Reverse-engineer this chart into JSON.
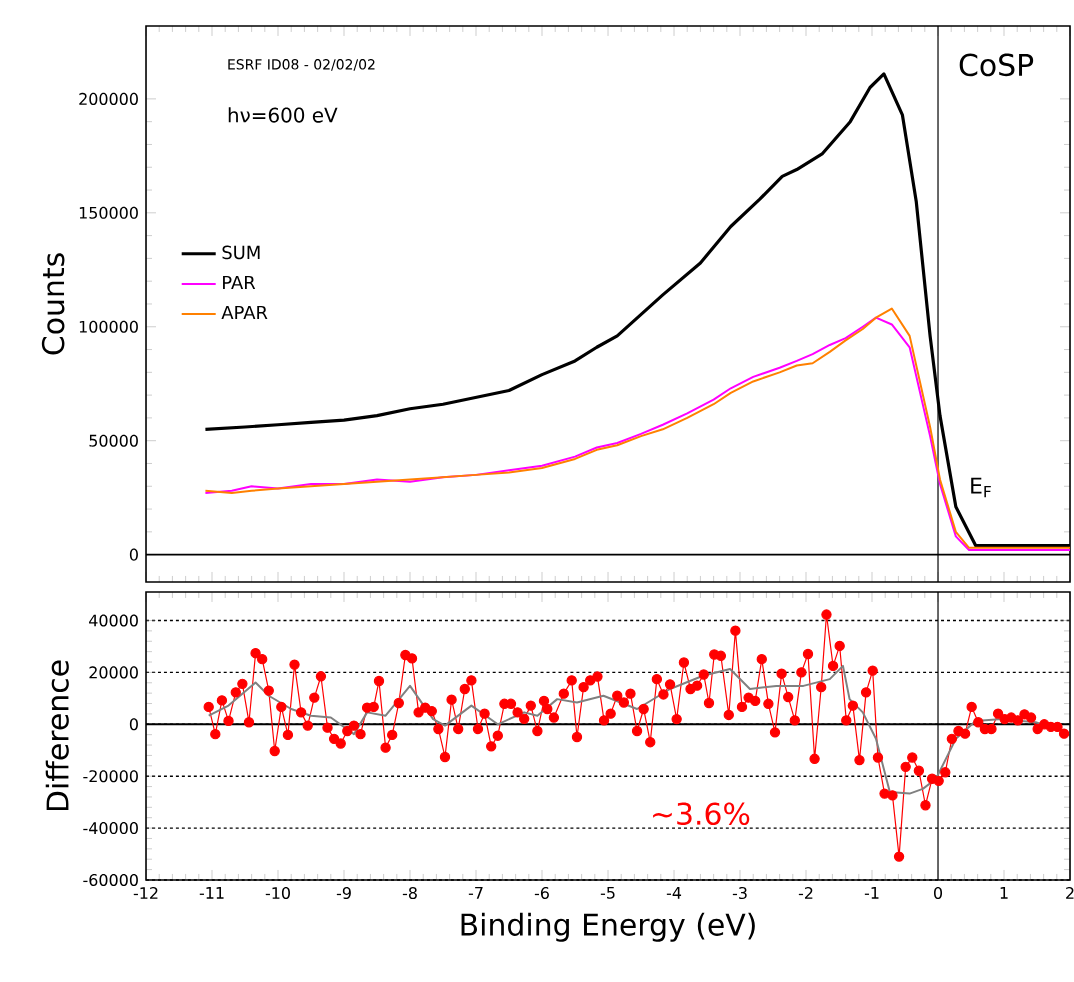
{
  "chart_data": [
    {
      "type": "line",
      "title": "CoSP",
      "ylabel": "Counts",
      "annotations": [
        "ESRF ID08 - 02/02/02",
        "hν=600 eV"
      ],
      "xlim": [
        -12,
        2
      ],
      "xticks": [
        -12,
        -11,
        -10,
        -9,
        -8,
        -7,
        -6,
        -5,
        -4,
        -3,
        -2,
        -1,
        0,
        1,
        2
      ],
      "ylim": [
        -12000,
        232000
      ],
      "yticks": [
        0,
        50000,
        100000,
        150000,
        200000
      ],
      "tick_labels": "y",
      "legend": "left",
      "marker": "none",
      "ref_lines": [
        {
          "axis": "y",
          "value": 0,
          "color": "#000000"
        },
        {
          "axis": "x",
          "value": 0,
          "color": "#000000",
          "label": "E$_{F}$"
        }
      ],
      "series": [
        {
          "name": "SUM",
          "color": "#000000",
          "x": [
            -11.1,
            -10.5,
            -10,
            -9.5,
            -9,
            -8.5,
            -8,
            -7.5,
            -7,
            -6.5,
            -6,
            -5.5,
            -5.17,
            -4.86,
            -4.17,
            -3.6,
            -3.14,
            -2.7,
            -2.36,
            -2.14,
            -1.75,
            -1.33,
            -1.03,
            -0.82,
            -0.54,
            -0.33,
            -0.12,
            0.03,
            0.27,
            0.57,
            1,
            1.5,
            2
          ],
          "values": [
            55000,
            56000,
            57000,
            58000,
            59000,
            61000,
            64000,
            66000,
            69000,
            72000,
            79000,
            85000,
            91000,
            96000,
            114000,
            128000,
            144000,
            156000,
            166000,
            169000,
            176000,
            190000,
            205000,
            211000,
            193000,
            155000,
            96000,
            61000,
            21000,
            4000,
            4000,
            4000,
            4000
          ]
        },
        {
          "name": "PAR",
          "color": "#ff00ff",
          "x": [
            -11.1,
            -10.7,
            -10.4,
            -10,
            -9.5,
            -9,
            -8.5,
            -8,
            -7.5,
            -7,
            -6.5,
            -6,
            -5.5,
            -5.17,
            -4.86,
            -4.5,
            -4.17,
            -3.8,
            -3.4,
            -3.14,
            -2.8,
            -2.4,
            -2.14,
            -1.9,
            -1.64,
            -1.4,
            -1.14,
            -0.94,
            -0.7,
            -0.43,
            -0.12,
            0.03,
            0.27,
            0.47,
            1,
            2
          ],
          "values": [
            27000,
            28000,
            30000,
            29000,
            31000,
            31000,
            33000,
            32000,
            34000,
            35000,
            37000,
            39000,
            43000,
            47000,
            49000,
            53000,
            57000,
            62000,
            68000,
            73000,
            78000,
            82000,
            85000,
            88000,
            92000,
            95000,
            100000,
            104000,
            101000,
            91000,
            52000,
            31000,
            8000,
            2000,
            2000,
            2000
          ]
        },
        {
          "name": "APAR",
          "color": "#ff8000",
          "x": [
            -11.1,
            -10.7,
            -10.4,
            -10,
            -9.5,
            -9,
            -8.5,
            -8,
            -7.5,
            -7,
            -6.5,
            -6,
            -5.5,
            -5.17,
            -4.86,
            -4.5,
            -4.17,
            -3.8,
            -3.4,
            -3.14,
            -2.8,
            -2.4,
            -2.14,
            -1.9,
            -1.64,
            -1.4,
            -1.14,
            -0.94,
            -0.7,
            -0.43,
            -0.12,
            0.03,
            0.27,
            0.47,
            1,
            2
          ],
          "values": [
            28000,
            27000,
            28000,
            29000,
            30000,
            31000,
            32000,
            33000,
            34000,
            35000,
            36000,
            38000,
            42000,
            46000,
            48000,
            52000,
            55000,
            60000,
            66000,
            71000,
            76000,
            80000,
            83000,
            84000,
            89000,
            94000,
            99000,
            104000,
            108000,
            96000,
            56000,
            33000,
            10000,
            3000,
            3000,
            3000
          ]
        }
      ]
    },
    {
      "type": "line",
      "xlabel": "Binding Energy (eV)",
      "ylabel": "Difference",
      "annotations": [
        "~3.6%"
      ],
      "xlim": [
        -12,
        2
      ],
      "xticks": [
        -12,
        -11,
        -10,
        -9,
        -8,
        -7,
        -6,
        -5,
        -4,
        -3,
        -2,
        -1,
        0,
        1,
        2
      ],
      "ylim": [
        -60000,
        51000
      ],
      "yticks": [
        -60000,
        -40000,
        -20000,
        0,
        20000,
        40000
      ],
      "grid": "y",
      "ref_lines": [
        {
          "axis": "y",
          "value": 0,
          "color": "#000000"
        },
        {
          "axis": "x",
          "value": 0,
          "color": "#000000"
        }
      ],
      "series": [
        {
          "color": "#ff0000",
          "marker": "circle",
          "x": [
            -11.05,
            -10.95,
            -10.85,
            -10.75,
            -10.64,
            -10.54,
            -10.44,
            -10.34,
            -10.24,
            -10.14,
            -10.05,
            -9.95,
            -9.85,
            -9.75,
            -9.65,
            -9.55,
            -9.45,
            -9.35,
            -9.25,
            -9.15,
            -9.05,
            -8.95,
            -8.85,
            -8.75,
            -8.65,
            -8.55,
            -8.47,
            -8.37,
            -8.27,
            -8.17,
            -8.07,
            -7.97,
            -7.87,
            -7.77,
            -7.67,
            -7.57,
            -7.47,
            -7.37,
            -7.27,
            -7.17,
            -7.07,
            -6.97,
            -6.87,
            -6.77,
            -6.67,
            -6.57,
            -6.47,
            -6.37,
            -6.27,
            -6.17,
            -6.07,
            -5.97,
            -5.92,
            -5.82,
            -5.67,
            -5.55,
            -5.47,
            -5.37,
            -5.27,
            -5.16,
            -5.06,
            -4.96,
            -4.86,
            -4.76,
            -4.66,
            -4.56,
            -4.46,
            -4.36,
            -4.26,
            -4.16,
            -4.06,
            -3.96,
            -3.85,
            -3.75,
            -3.65,
            -3.55,
            -3.47,
            -3.39,
            -3.29,
            -3.17,
            -3.07,
            -2.97,
            -2.87,
            -2.77,
            -2.67,
            -2.57,
            -2.47,
            -2.37,
            -2.27,
            -2.17,
            -2.07,
            -1.97,
            -1.87,
            -1.77,
            -1.69,
            -1.59,
            -1.49,
            -1.39,
            -1.29,
            -1.19,
            -1.09,
            -0.99,
            -0.91,
            -0.81,
            -0.69,
            -0.59,
            -0.49,
            -0.39,
            -0.29,
            -0.19,
            -0.09,
            0.01,
            0.11,
            0.21,
            0.31,
            0.41,
            0.51,
            0.61,
            0.71,
            0.81,
            0.91,
            1.01,
            1.11,
            1.21,
            1.31,
            1.41,
            1.51,
            1.61,
            1.71,
            1.81,
            1.91
          ],
          "values": [
            6700,
            -3800,
            9200,
            1300,
            12300,
            15600,
            800,
            27400,
            25100,
            13000,
            -10300,
            6700,
            -4100,
            23000,
            4600,
            -500,
            10300,
            18500,
            -1300,
            -5600,
            -7400,
            -2600,
            -500,
            -3800,
            6400,
            6700,
            16700,
            -9000,
            -4100,
            8200,
            26700,
            25400,
            4600,
            6400,
            5100,
            -1800,
            -12600,
            9500,
            -1800,
            13600,
            16900,
            -1800,
            4100,
            -8500,
            -4400,
            7900,
            7900,
            4600,
            2100,
            7200,
            -2600,
            9000,
            5900,
            2600,
            11800,
            16900,
            -4900,
            14300,
            16900,
            18400,
            1500,
            4100,
            11000,
            8400,
            11800,
            -2600,
            5900,
            -6900,
            17400,
            11500,
            15400,
            2000,
            23800,
            13600,
            14900,
            19200,
            8200,
            26900,
            26400,
            3600,
            36100,
            6700,
            10300,
            9000,
            25100,
            7900,
            -3100,
            19500,
            10500,
            1500,
            20000,
            27100,
            -13300,
            14300,
            42300,
            22500,
            30200,
            1500,
            7200,
            -13800,
            12300,
            20700,
            -12800,
            -26700,
            -27400,
            -51000,
            -16400,
            -12800,
            -17900,
            -31200,
            -21000,
            -21800,
            -18500,
            -5600,
            -2600,
            -3600,
            6700,
            800,
            -1800,
            -1800,
            4100,
            2000,
            2600,
            1500,
            3800,
            2600,
            -1800,
            0,
            -1000,
            -1000,
            -3600
          ]
        },
        {
          "color": "#808080",
          "marker": "none",
          "x": [
            -11.05,
            -10.75,
            -10.34,
            -10.14,
            -9.8,
            -9.5,
            -9.2,
            -8.85,
            -8.65,
            -8.37,
            -8.0,
            -7.65,
            -7.47,
            -7.07,
            -6.67,
            -6.27,
            -6.07,
            -5.77,
            -5.47,
            -5.07,
            -4.56,
            -4.06,
            -3.56,
            -3.15,
            -2.85,
            -2.45,
            -2.04,
            -1.64,
            -1.44,
            -1.34,
            -1.14,
            -0.94,
            -0.73,
            -0.43,
            -0.23,
            -0.03,
            0.27,
            0.57,
            0.97,
            1.48,
            1.94
          ],
          "values": [
            3300,
            7200,
            16100,
            11000,
            5900,
            3300,
            2600,
            -3800,
            4600,
            3300,
            14800,
            2000,
            -500,
            7200,
            0,
            4600,
            3300,
            9700,
            8400,
            11000,
            5900,
            13600,
            18700,
            21300,
            13600,
            14800,
            14800,
            17400,
            22500,
            9700,
            4600,
            -5600,
            -26100,
            -26700,
            -24900,
            -21000,
            -5600,
            1300,
            2000,
            800,
            -3100
          ]
        }
      ]
    }
  ]
}
